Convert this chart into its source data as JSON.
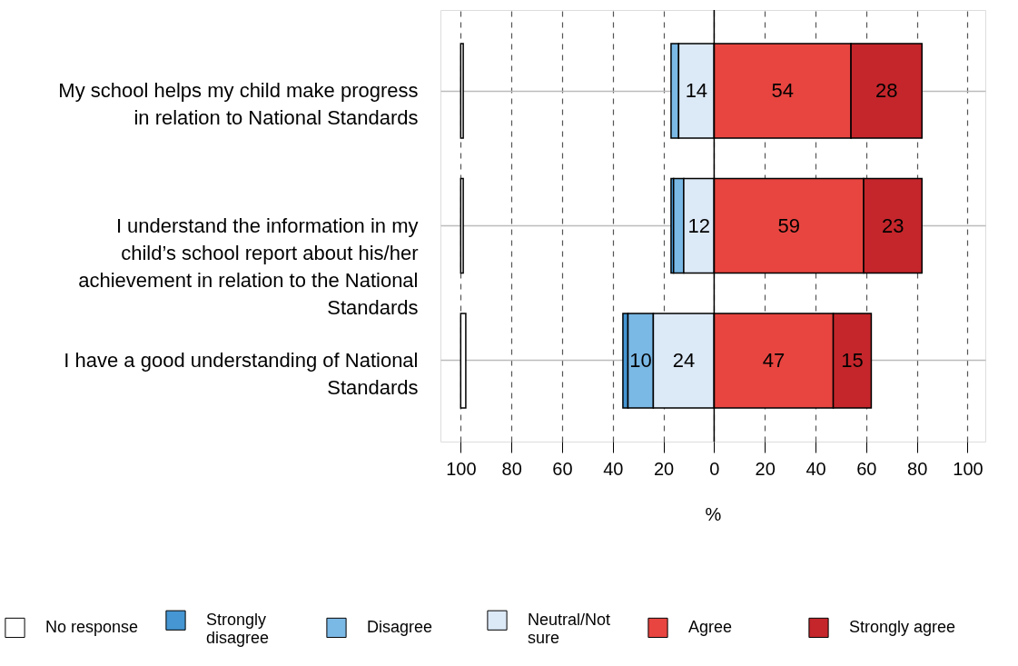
{
  "chart_data": {
    "type": "bar",
    "orientation": "horizontal",
    "xlabel": "%",
    "categories": [
      "My school helps my child make progress in relation to National Standards",
      "I understand the information in my child’s school report about his/her achievement in relation to the National Standards",
      "I have a good understanding of National Standards"
    ],
    "xlim": [
      -108,
      107
    ],
    "xticks": [
      {
        "value": -100,
        "label": "100"
      },
      {
        "value": -80,
        "label": "80"
      },
      {
        "value": -60,
        "label": "60"
      },
      {
        "value": -40,
        "label": "40"
      },
      {
        "value": -20,
        "label": "20"
      },
      0,
      20,
      40,
      60,
      80,
      100
    ],
    "grid": true,
    "legend": "bottom",
    "ref_lines": [
      {
        "axis": "x",
        "value": 0,
        "color": "#000000"
      }
    ],
    "series": [
      {
        "name": "No response",
        "color": "#ffffff",
        "base": [
          -100,
          -100,
          -100
        ],
        "values": [
          1,
          1,
          2
        ]
      },
      {
        "name": "Strongly disagree",
        "color": "#4596d2",
        "base": [
          null,
          -16,
          -34
        ],
        "values": [
          null,
          -1,
          -2
        ]
      },
      {
        "name": "Disagree",
        "color": "#7ab8e5",
        "base": [
          -14,
          -12,
          -24
        ],
        "values": [
          -3,
          -4,
          -10
        ],
        "value_labels": [
          null,
          null,
          "10"
        ]
      },
      {
        "name": "Neutral/Not sure",
        "color": "#dce9f7",
        "base": [
          0,
          0,
          0
        ],
        "values": [
          -14,
          -12,
          -24
        ],
        "value_labels": [
          "14",
          "12",
          "24"
        ]
      },
      {
        "name": "Agree",
        "color": "#e84540",
        "base": [
          0,
          0,
          0
        ],
        "values": [
          54,
          59,
          47
        ],
        "value_labels": [
          "54",
          "59",
          "47"
        ]
      },
      {
        "name": "Strongly agree",
        "color": "#c4262b",
        "base": [
          54,
          59,
          47
        ],
        "values": [
          28,
          23,
          15
        ],
        "value_labels": [
          "28",
          "23",
          "15"
        ]
      }
    ]
  }
}
